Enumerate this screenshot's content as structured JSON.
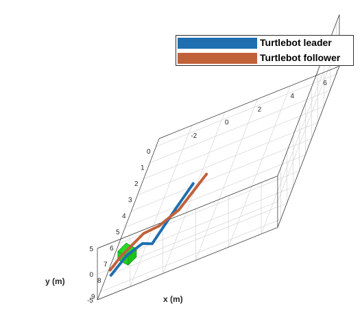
{
  "chart_data": {
    "type": "line",
    "view": "3d-oblique",
    "grid": true,
    "legend_position": "top-right",
    "xlabel": "x (m)",
    "ylabel": "y (m)",
    "zlabel": "",
    "x_ticks": [
      "-2",
      "0",
      "2",
      "4",
      "6"
    ],
    "y_ticks": [
      "0",
      "1",
      "2",
      "3",
      "4",
      "5",
      "6",
      "7",
      "8",
      "9"
    ],
    "z_ticks": [
      "5",
      "0",
      "-5"
    ],
    "series": [
      {
        "name": "Turtlebot leader",
        "color": "#1f6fb0",
        "points": [
          {
            "x": -3.7,
            "y": 8.1
          },
          {
            "x": -3.1,
            "y": 7.1
          },
          {
            "x": -2.3,
            "y": 6.7
          },
          {
            "x": -1.6,
            "y": 7.0
          },
          {
            "x": -0.9,
            "y": 5.2
          },
          {
            "x": -0.3,
            "y": 3.8
          }
        ]
      },
      {
        "name": "Turtlebot follower",
        "color": "#c1613a",
        "points": [
          {
            "x": -3.9,
            "y": 7.7
          },
          {
            "x": -3.5,
            "y": 7.0
          },
          {
            "x": -2.5,
            "y": 6.0
          },
          {
            "x": -1.6,
            "y": 5.9
          },
          {
            "x": -0.6,
            "y": 5.3
          },
          {
            "x": 0.4,
            "y": 3.5
          }
        ]
      }
    ],
    "obstacle": {
      "color": "#22dd22",
      "x": -3.0,
      "y": 7.5,
      "size": 1.0
    }
  }
}
